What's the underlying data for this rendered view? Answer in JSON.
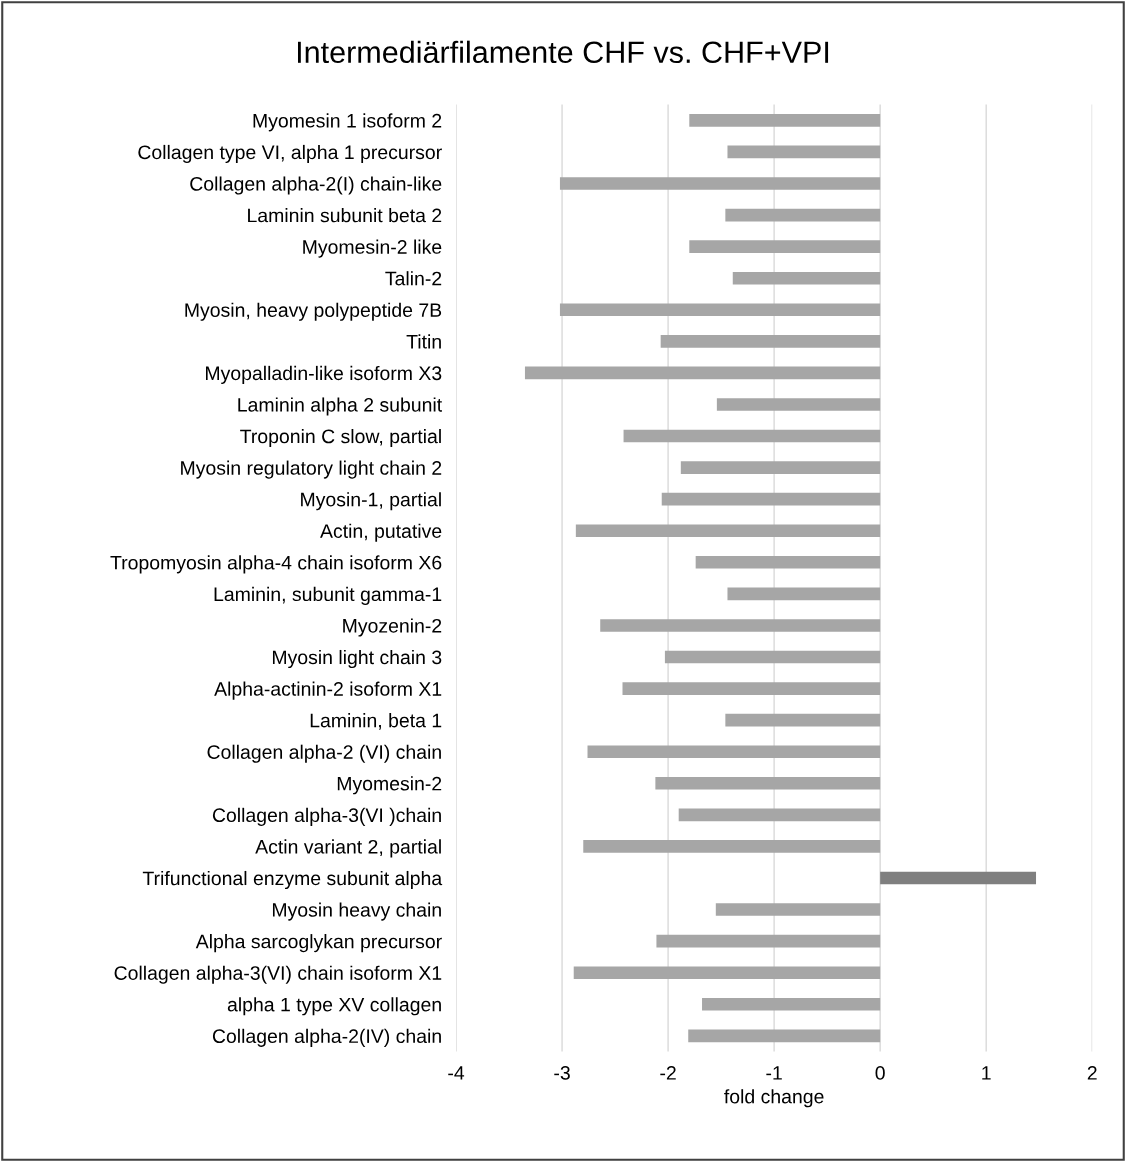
{
  "chart_data": {
    "type": "bar",
    "orientation": "horizontal",
    "title": "Intermediärfilamente CHF vs. CHF+VPI",
    "xlabel": "fold change",
    "categories": [
      "Myomesin 1 isoform 2",
      "Collagen type VI, alpha 1 precursor",
      "Collagen alpha-2(I) chain-like",
      "Laminin subunit beta 2",
      "Myomesin-2 like",
      "Talin-2",
      "Myosin, heavy polypeptide 7B",
      "Titin",
      "Myopalladin-like isoform X3",
      "Laminin alpha 2 subunit",
      "Troponin C slow, partial",
      "Myosin regulatory light chain 2",
      "Myosin-1, partial",
      "Actin, putative",
      "Tropomyosin alpha-4 chain isoform X6",
      "Laminin, subunit gamma-1",
      "Myozenin-2",
      "Myosin light chain 3",
      "Alpha-actinin-2 isoform X1",
      "Laminin, beta 1",
      "Collagen alpha-2 (VI) chain",
      "Myomesin-2",
      "Collagen alpha-3(VI )chain",
      "Actin variant 2, partial",
      "Trifunctional enzyme subunit alpha",
      "Myosin heavy chain",
      "Alpha sarcoglykan precursor",
      "Collagen alpha-3(VI) chain isoform X1",
      "alpha 1 type XV collagen",
      "Collagen alpha-2(IV) chain"
    ],
    "values": [
      -1.8,
      -1.44,
      -3.02,
      -1.46,
      -1.8,
      -1.39,
      -3.02,
      -2.07,
      -3.35,
      -1.54,
      -2.42,
      -1.88,
      -2.06,
      -2.87,
      -1.74,
      -1.44,
      -2.64,
      -2.03,
      -2.43,
      -1.46,
      -2.76,
      -2.12,
      -1.9,
      -2.8,
      1.47,
      -1.55,
      -2.11,
      -2.89,
      -1.68,
      -1.81
    ],
    "colors": [
      "#a6a6a6",
      "#a6a6a6",
      "#a6a6a6",
      "#a6a6a6",
      "#a6a6a6",
      "#a6a6a6",
      "#a6a6a6",
      "#a6a6a6",
      "#a6a6a6",
      "#a6a6a6",
      "#a6a6a6",
      "#a6a6a6",
      "#a6a6a6",
      "#a6a6a6",
      "#a6a6a6",
      "#a6a6a6",
      "#a6a6a6",
      "#a6a6a6",
      "#a6a6a6",
      "#a6a6a6",
      "#a6a6a6",
      "#a6a6a6",
      "#a6a6a6",
      "#a6a6a6",
      "#7f7f7f",
      "#a6a6a6",
      "#a6a6a6",
      "#a6a6a6",
      "#a6a6a6",
      "#a6a6a6"
    ],
    "xlim": [
      -4,
      2
    ],
    "xticks": [
      -4,
      -3,
      -2,
      -1,
      0,
      1,
      2
    ],
    "grid": "x"
  }
}
